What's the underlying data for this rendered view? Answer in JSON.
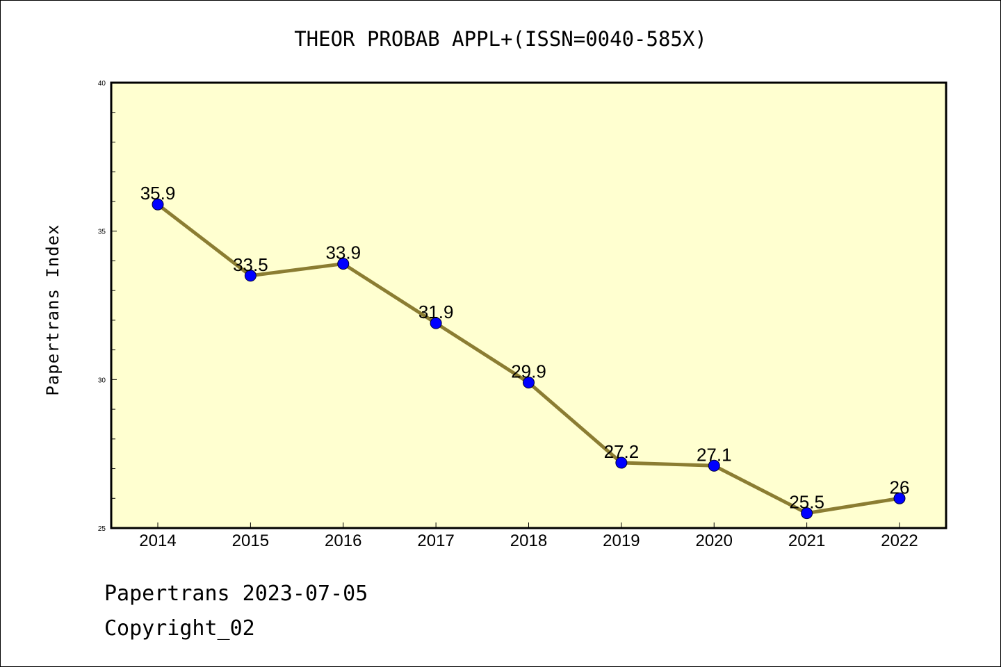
{
  "chart_data": {
    "type": "line",
    "title": "THEOR PROBAB APPL+(ISSN=0040-585X)",
    "xlabel": "",
    "ylabel": "Papertrans Index",
    "x": [
      "2014",
      "2015",
      "2016",
      "2017",
      "2018",
      "2019",
      "2020",
      "2021",
      "2022"
    ],
    "series": [
      {
        "name": "",
        "values": [
          35.9,
          33.5,
          33.9,
          31.9,
          29.9,
          27.2,
          27.1,
          25.5,
          26
        ]
      }
    ],
    "data_labels": [
      "35.9",
      "33.5",
      "33.9",
      "31.9",
      "29.9",
      "27.2",
      "27.1",
      "25.5",
      "26"
    ],
    "ylim": [
      25,
      40
    ],
    "yticks": [
      "25",
      "30",
      "35",
      "40"
    ],
    "grid": false,
    "colors": {
      "plot_background": "#ffffd0",
      "line": "#8b7d32",
      "marker": "#0000ff"
    }
  },
  "footer": {
    "line1": "Papertrans 2023-07-05",
    "line2": "Copyright_02"
  }
}
